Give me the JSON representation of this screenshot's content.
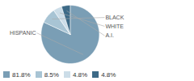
{
  "chart_data": {
    "type": "pie",
    "categories": [
      "HISPANIC",
      "BLACK",
      "WHITE",
      "A.I."
    ],
    "values": [
      81.8,
      8.5,
      4.8,
      4.8
    ],
    "colors": [
      "#7a9eb5",
      "#a8c4d4",
      "#ccdde8",
      "#3d6a87"
    ],
    "value_labels": [
      "81.8%",
      "8.5%",
      "4.8%",
      "4.8%"
    ],
    "legend": "lower left"
  }
}
